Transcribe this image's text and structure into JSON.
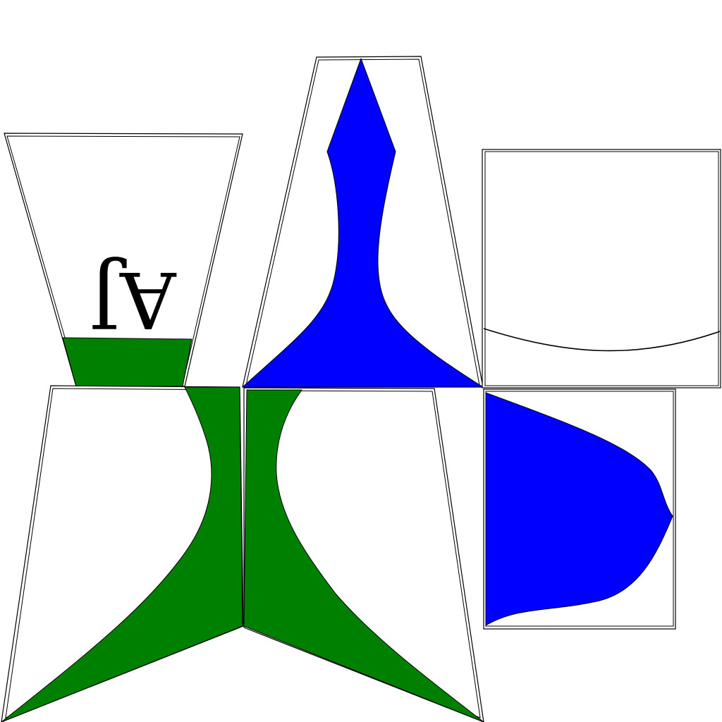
{
  "diagram": {
    "label": "AJ",
    "colors": {
      "green": "#008000",
      "blue": "#0000ff",
      "outline": "#000000",
      "background": "#ffffff"
    }
  }
}
